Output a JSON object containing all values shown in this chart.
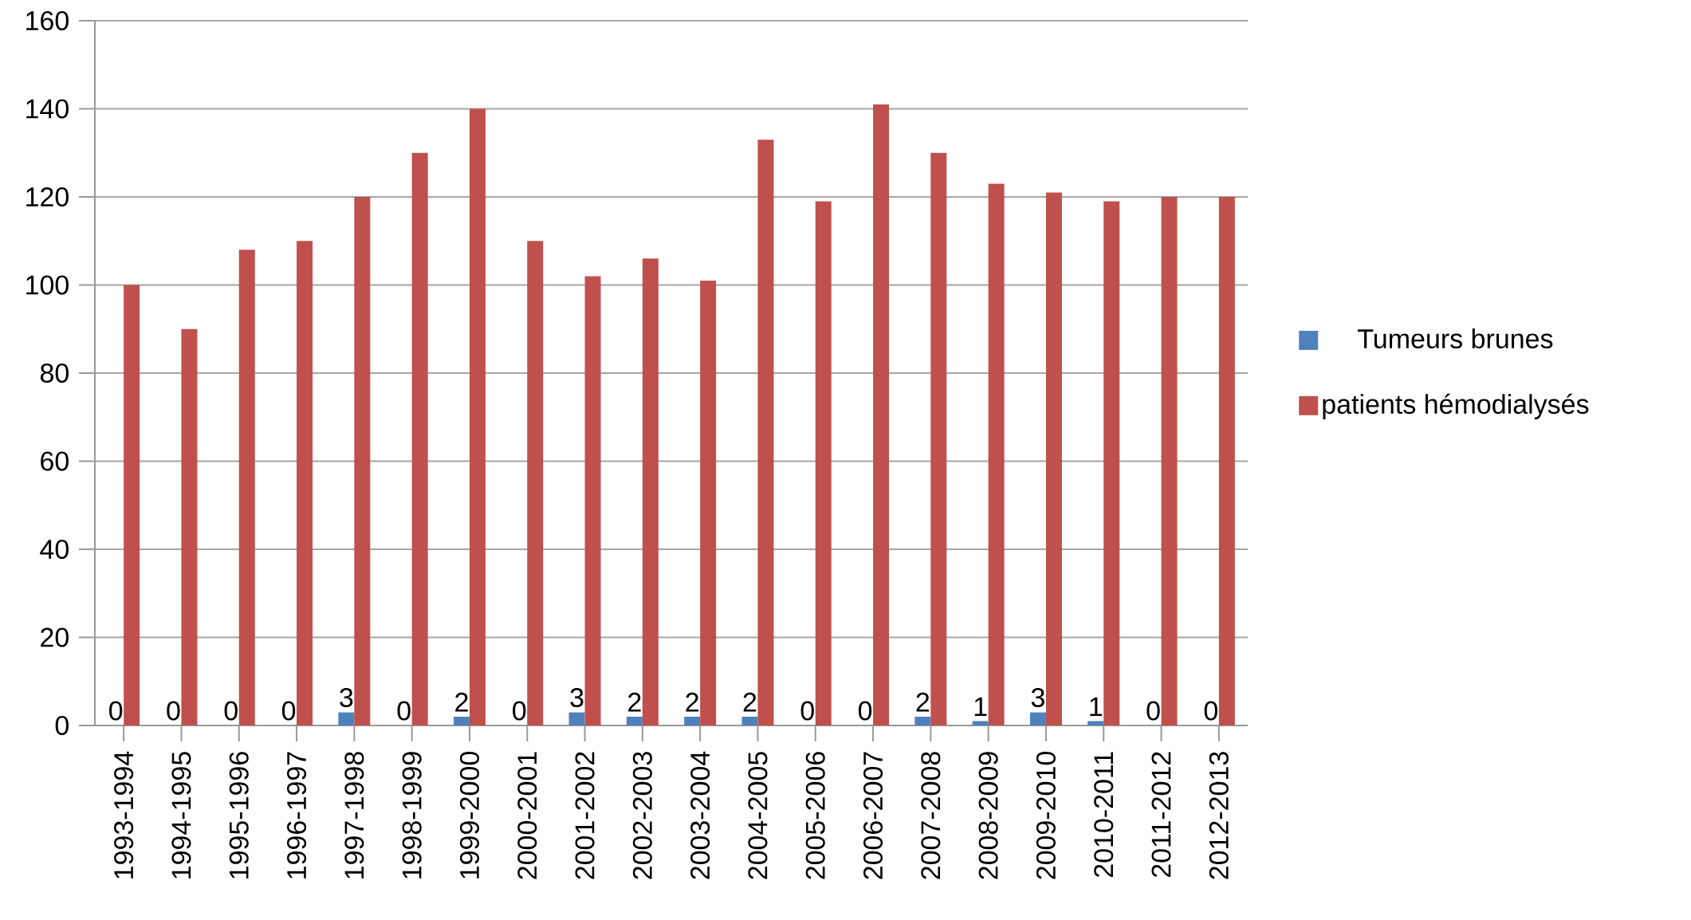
{
  "chart_data": {
    "type": "bar",
    "categories": [
      "1993-1994",
      "1994-1995",
      "1995-1996",
      "1996-1997",
      "1997-1998",
      "1998-1999",
      "1999-2000",
      "2000-2001",
      "2001-2002",
      "2002-2003",
      "2003-2004",
      "2004-2005",
      "2005-2006",
      "2006-2007",
      "2007-2008",
      "2008-2009",
      "2009-2010",
      "2010-2011",
      "2011-2012",
      "2012-2013"
    ],
    "series": [
      {
        "name": "Tumeurs brunes",
        "color": "#4f81bd",
        "values": [
          0,
          0,
          0,
          0,
          3,
          0,
          2,
          0,
          3,
          2,
          2,
          2,
          0,
          0,
          2,
          1,
          3,
          1,
          0,
          0
        ],
        "value_labels": [
          "0",
          "0",
          "0",
          "0",
          "3",
          "0",
          "2",
          "0",
          "3",
          "2",
          "2",
          "2",
          "0",
          "0",
          "2",
          "1",
          "3",
          "1",
          "0",
          "0"
        ]
      },
      {
        "name": "patients hémodialysés",
        "color": "#c0504d",
        "values": [
          100,
          90,
          108,
          110,
          120,
          130,
          140,
          110,
          102,
          106,
          101,
          133,
          119,
          141,
          130,
          123,
          121,
          119,
          120,
          120
        ]
      }
    ],
    "ylim": [
      0,
      160
    ],
    "yticks": [
      0,
      20,
      40,
      60,
      80,
      100,
      120,
      140,
      160
    ],
    "grid": "y",
    "legend": "right"
  }
}
